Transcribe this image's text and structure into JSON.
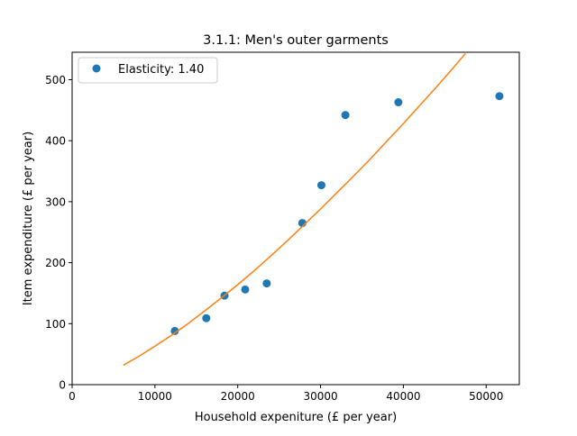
{
  "chart_data": {
    "type": "scatter",
    "title": "3.1.1: Men's outer garments",
    "xlabel": "Household expeniture (£ per year)",
    "ylabel": "Item expenditure (£ per year)",
    "xlim": [
      0,
      54000
    ],
    "ylim": [
      0,
      545
    ],
    "x_ticks": [
      0,
      10000,
      20000,
      30000,
      40000,
      50000
    ],
    "x_tick_labels": [
      "0",
      "10000",
      "20000",
      "30000",
      "40000",
      "50000"
    ],
    "y_ticks": [
      0,
      100,
      200,
      300,
      400,
      500
    ],
    "y_tick_labels": [
      "0",
      "100",
      "200",
      "300",
      "400",
      "500"
    ],
    "grid": false,
    "legend_position": "top-left",
    "series": [
      {
        "name": "Elasticity: 1.40",
        "kind": "scatter",
        "color": "#1f77b4",
        "x": [
          12400,
          16200,
          18400,
          20900,
          23500,
          27800,
          30100,
          33000,
          39400,
          51600
        ],
        "y": [
          88,
          109,
          146,
          156,
          166,
          265,
          327,
          442,
          463,
          473
        ]
      },
      {
        "kind": "line",
        "color": "#ff7f0e",
        "x": [
          6200,
          8000,
          10000,
          12000,
          14000,
          16000,
          18000,
          20000,
          22000,
          24000,
          26000,
          28000,
          30000,
          32000,
          34000,
          36000,
          38000,
          40000,
          42000,
          44000,
          46000,
          47500
        ],
        "y": [
          32,
          46,
          63,
          81,
          100,
          121,
          142,
          164,
          187,
          211,
          236,
          262,
          288,
          315,
          342,
          370,
          399,
          428,
          458,
          488,
          519,
          543
        ]
      }
    ]
  }
}
